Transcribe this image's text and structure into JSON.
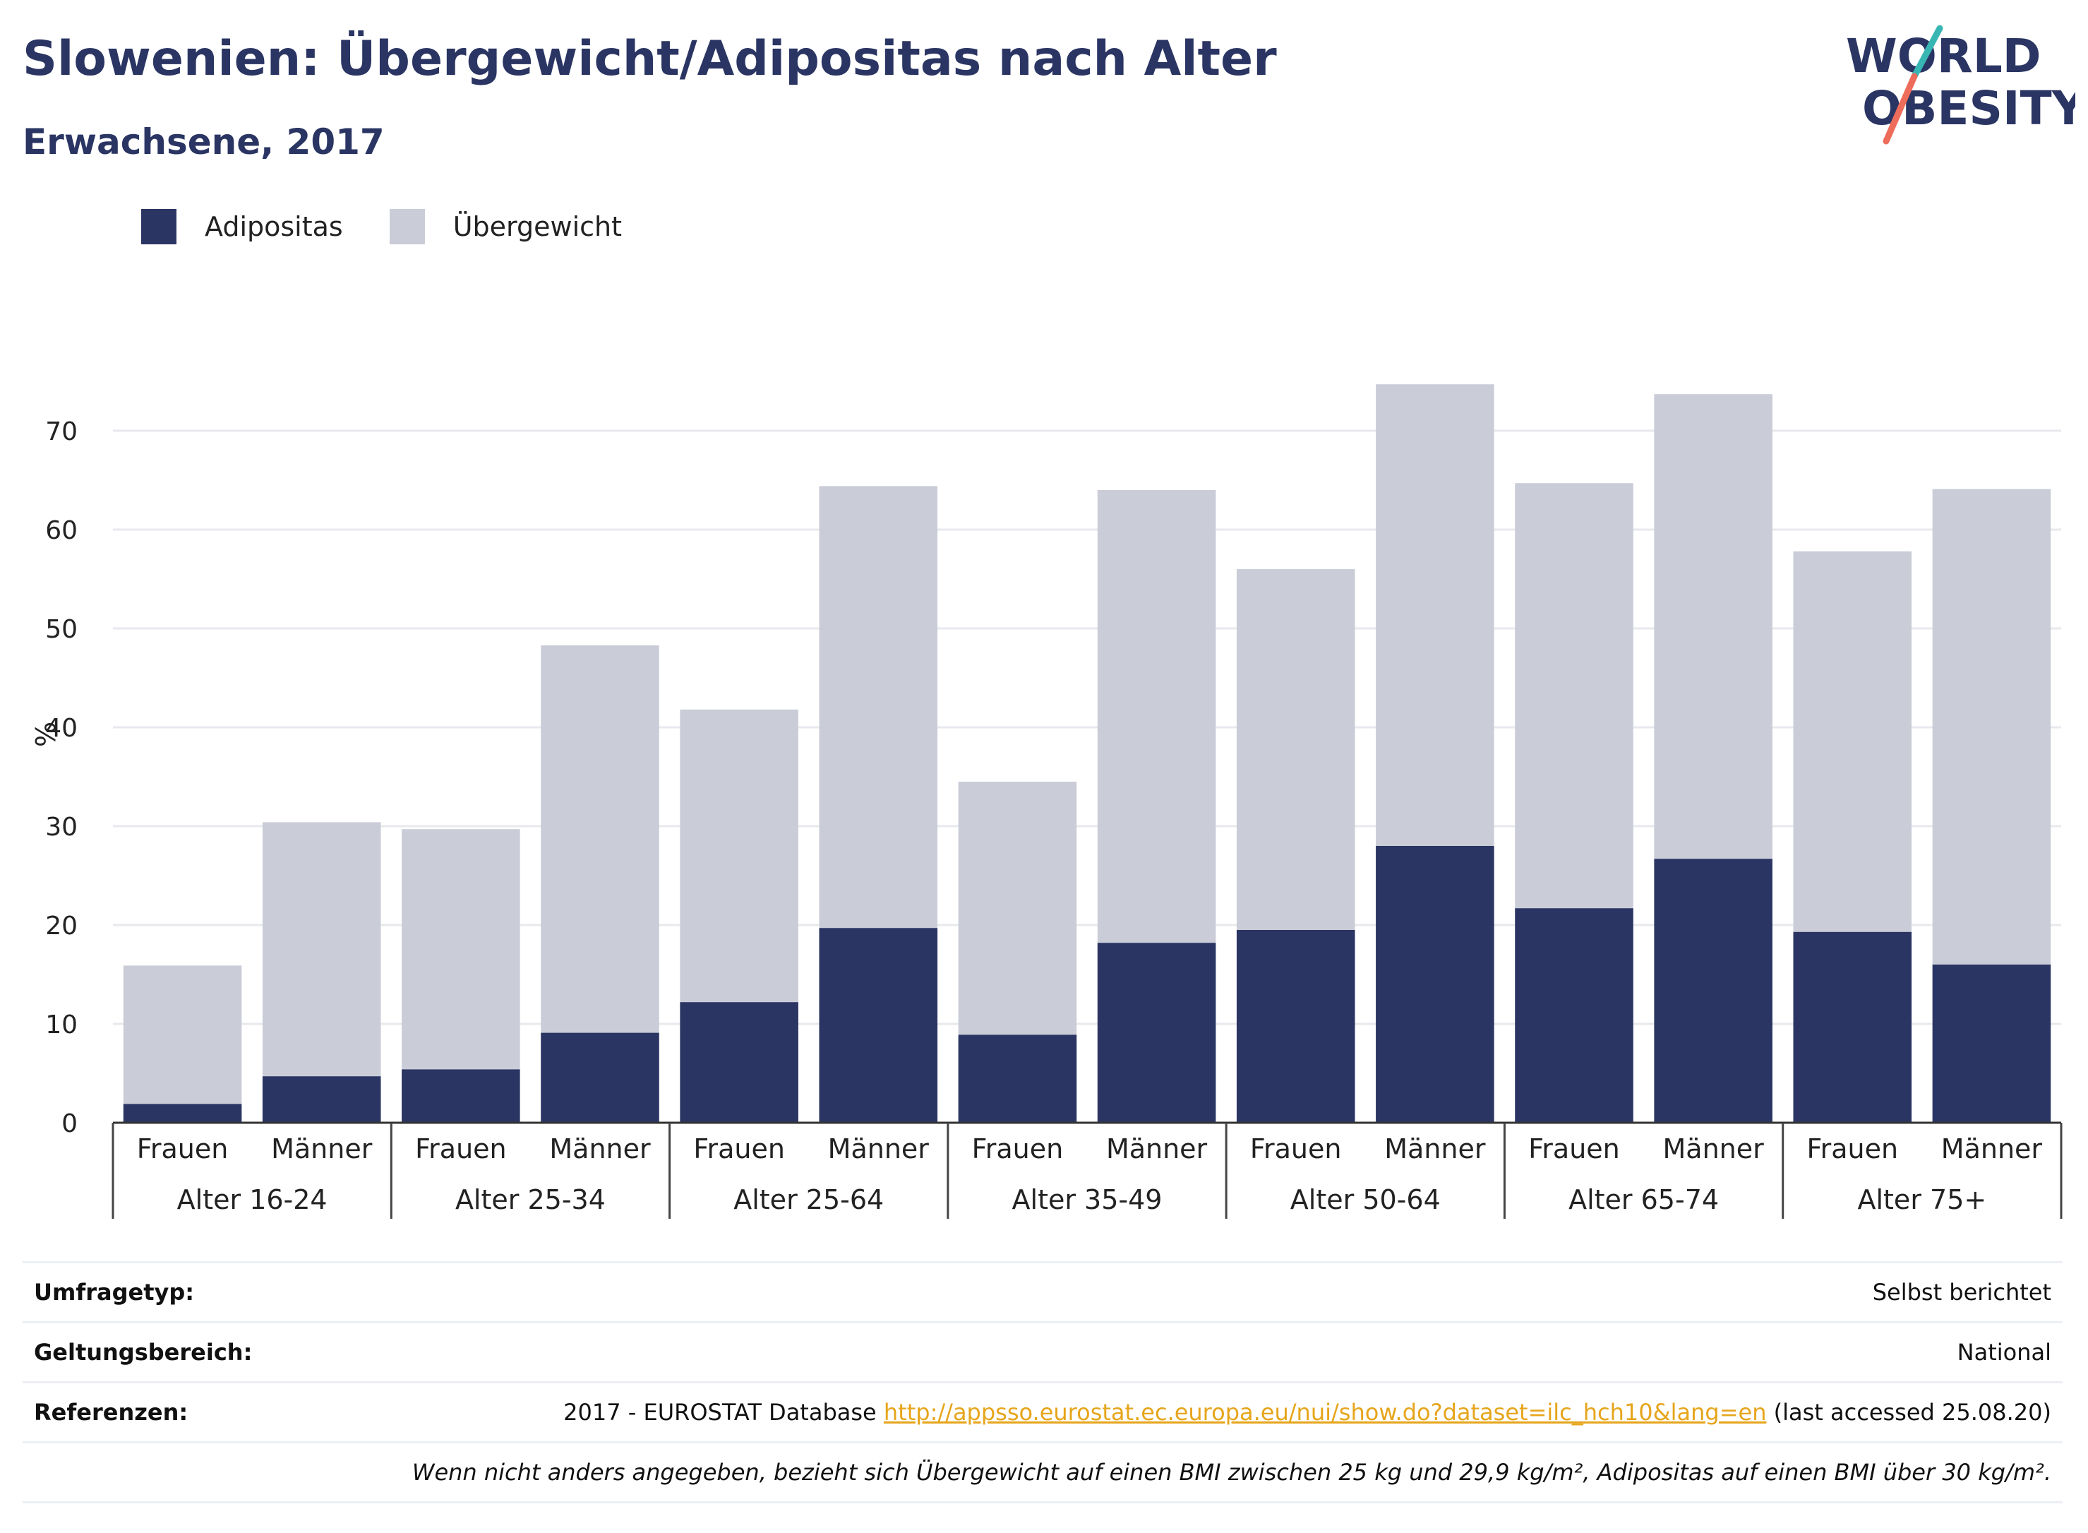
{
  "title": "Slowenien: Übergewicht/Adipositas nach Alter",
  "subtitle": "Erwachsene, 2017",
  "logo": {
    "line1": "WORLD",
    "line2": "OBESITY"
  },
  "colors": {
    "adipositas": "#2a3563",
    "uebergewicht": "#cacdd8",
    "accent": "#e6a51b",
    "logo_teal": "#38b6b4",
    "logo_red": "#ee6c5a"
  },
  "chart_data": {
    "type": "bar",
    "stacked": true,
    "ylabel": "%",
    "ylim": [
      0,
      80
    ],
    "yticks": [
      0,
      10,
      20,
      30,
      40,
      50,
      60,
      70
    ],
    "grid": true,
    "legend_position": "top-left",
    "groups": [
      "Alter 16-24",
      "Alter 25-34",
      "Alter 25-64",
      "Alter 35-49",
      "Alter 50-64",
      "Alter 65-74",
      "Alter 75+"
    ],
    "subcategories": [
      "Frauen",
      "Männer"
    ],
    "series": [
      {
        "name": "Adipositas",
        "values": [
          1.9,
          4.7,
          5.4,
          9.1,
          12.2,
          19.7,
          8.9,
          18.2,
          19.5,
          28.0,
          21.7,
          26.7,
          19.3,
          16.0
        ]
      },
      {
        "name": "Übergewicht",
        "values": [
          14.0,
          25.7,
          24.3,
          39.2,
          29.6,
          44.7,
          25.6,
          45.8,
          36.5,
          46.7,
          43.0,
          47.0,
          38.5,
          48.1
        ]
      }
    ]
  },
  "info": {
    "survey_label": "Umfragetyp:",
    "survey_value": "Selbst berichtet",
    "scope_label": "Geltungsbereich:",
    "scope_value": "National",
    "ref_label": "Referenzen:",
    "ref_prefix": "2017 - EUROSTAT Database ",
    "ref_link": "http://appsso.eurostat.ec.europa.eu/nui/show.do?dataset=ilc_hch10&lang=en",
    "ref_suffix": " (last accessed 25.08.20)",
    "note": "Wenn nicht anders angegeben, bezieht sich Übergewicht auf einen BMI zwischen 25 kg und 29,9 kg/m², Adipositas auf einen BMI über 30 kg/m²."
  }
}
